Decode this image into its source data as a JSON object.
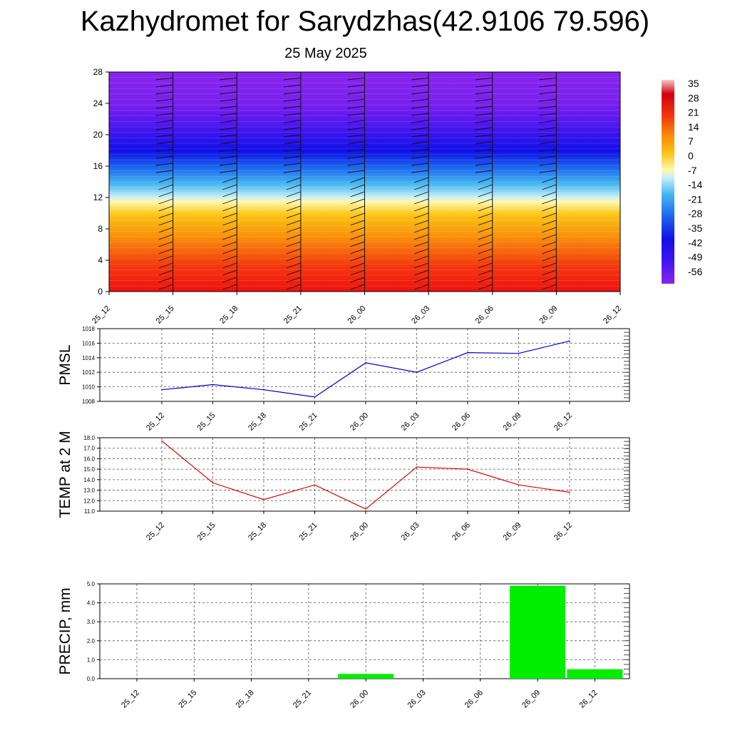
{
  "title": "Kazhydromet for Sarydzhas(42.9106 79.596)",
  "subtitle": "25 May 2025",
  "colorbar": {
    "labels": [
      "35",
      "28",
      "21",
      "14",
      "7",
      "0",
      "-7",
      "-14",
      "-21",
      "-28",
      "-35",
      "-42",
      "-49",
      "-56"
    ]
  },
  "chart_data": [
    {
      "type": "heatmap",
      "name_hint": "temperature-cross-section",
      "x_tick_labels": [
        "25_12",
        "25_15",
        "25_18",
        "25_21",
        "26_00",
        "26_03",
        "26_06",
        "26_09",
        "26_12"
      ],
      "y_tick_labels": [
        "0",
        "4",
        "8",
        "12",
        "16",
        "20",
        "24",
        "28"
      ],
      "ylim": [
        0,
        28
      ],
      "zlim": [
        -56,
        35
      ]
    },
    {
      "type": "line",
      "ylabel": "PMSL",
      "categories": [
        "25_12",
        "25_15",
        "25_18",
        "25_21",
        "26_00",
        "26_03",
        "26_06",
        "26_09",
        "26_12"
      ],
      "values": [
        1009.6,
        1010.3,
        1009.6,
        1008.6,
        1013.3,
        1012.0,
        1014.7,
        1014.6,
        1016.3
      ],
      "ylim": [
        1008,
        1018
      ],
      "y_tick_labels": [
        "1008",
        "1010",
        "1012",
        "1014",
        "1016",
        "1018"
      ],
      "color": "#0000cc",
      "grid": true
    },
    {
      "type": "line",
      "ylabel": "TEMP at 2 M",
      "categories": [
        "25_12",
        "25_15",
        "25_18",
        "25_21",
        "26_00",
        "26_03",
        "26_06",
        "26_09",
        "26_12"
      ],
      "values": [
        17.7,
        13.7,
        12.1,
        13.5,
        11.2,
        15.2,
        15.0,
        13.5,
        12.8
      ],
      "ylim": [
        11,
        18
      ],
      "y_tick_labels": [
        "11.0",
        "12.0",
        "13.0",
        "14.0",
        "15.0",
        "16.0",
        "17.0",
        "18.0"
      ],
      "color": "#dd0000",
      "grid": true
    },
    {
      "type": "bar",
      "ylabel": "PRECIP, mm",
      "categories": [
        "25_12",
        "25_15",
        "25_18",
        "25_21",
        "26_00",
        "26_03",
        "26_06",
        "26_09",
        "26_12"
      ],
      "values": [
        0,
        0,
        0,
        0,
        0.25,
        0,
        0,
        4.9,
        0.5
      ],
      "ylim": [
        0,
        5
      ],
      "y_tick_labels": [
        "0.0",
        "1.0",
        "2.0",
        "3.0",
        "4.0",
        "5.0"
      ],
      "color": "#00ee00",
      "grid": true
    }
  ]
}
